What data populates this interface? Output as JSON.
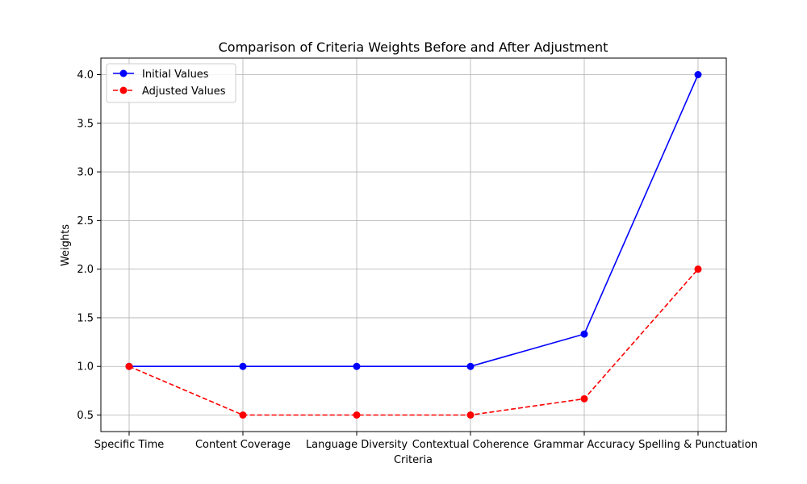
{
  "chart_data": {
    "type": "line",
    "title": "Comparison of Criteria Weights Before and After Adjustment",
    "xlabel": "Criteria",
    "ylabel": "Weights",
    "categories": [
      "Specific Time",
      "Content Coverage",
      "Language Diversity",
      "Contextual Coherence",
      "Grammar Accuracy",
      "Spelling & Punctuation"
    ],
    "ylim": [
      0.33,
      4.17
    ],
    "yticks": [
      "0.5",
      "1.0",
      "1.5",
      "2.0",
      "2.5",
      "3.0",
      "3.5",
      "4.0"
    ],
    "grid": true,
    "legend_position": "top-left",
    "series": [
      {
        "name": "Initial Values",
        "color": "#0000ff",
        "line_style": "solid",
        "marker": "circle",
        "values": [
          1.0,
          1.0,
          1.0,
          1.0,
          1.333,
          4.0
        ]
      },
      {
        "name": "Adjusted Values",
        "color": "#ff0000",
        "line_style": "dashed",
        "marker": "circle",
        "values": [
          1.0,
          0.5,
          0.5,
          0.5,
          0.667,
          2.0
        ]
      }
    ]
  }
}
